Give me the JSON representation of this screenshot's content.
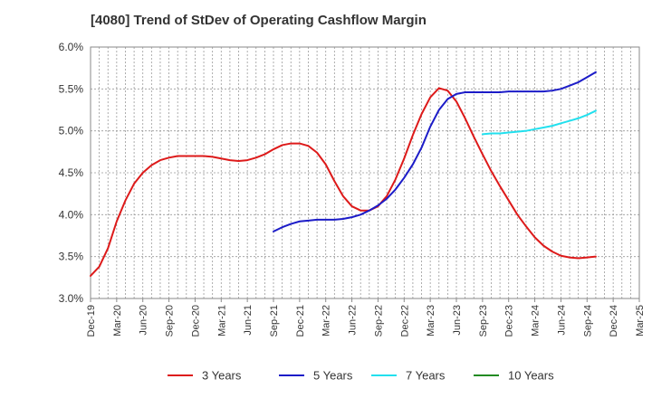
{
  "chart_data": {
    "type": "line",
    "title": "[4080]  Trend of StDev of Operating Cashflow Margin",
    "xlabel": "",
    "ylabel": "",
    "ylim": [
      3.0,
      6.0
    ],
    "y_ticks": [
      "3.0%",
      "3.5%",
      "4.0%",
      "4.5%",
      "5.0%",
      "5.5%",
      "6.0%"
    ],
    "x_ticks": [
      "Dec-19",
      "Mar-20",
      "Jun-20",
      "Sep-20",
      "Dec-20",
      "Mar-21",
      "Jun-21",
      "Sep-21",
      "Dec-21",
      "Mar-22",
      "Jun-22",
      "Sep-22",
      "Dec-22",
      "Mar-23",
      "Jun-23",
      "Sep-23",
      "Dec-23",
      "Mar-24",
      "Jun-24",
      "Sep-24",
      "Dec-24",
      "Mar-25"
    ],
    "x_range_months": [
      0,
      63
    ],
    "grid": true,
    "legend_position": "bottom",
    "series": [
      {
        "name": "3 Years",
        "color": "#dd1a1a",
        "points": [
          [
            0,
            3.27
          ],
          [
            1,
            3.38
          ],
          [
            2,
            3.6
          ],
          [
            3,
            3.92
          ],
          [
            4,
            4.17
          ],
          [
            5,
            4.37
          ],
          [
            6,
            4.5
          ],
          [
            7,
            4.59
          ],
          [
            8,
            4.65
          ],
          [
            9,
            4.68
          ],
          [
            10,
            4.7
          ],
          [
            11,
            4.7
          ],
          [
            12,
            4.7
          ],
          [
            13,
            4.7
          ],
          [
            14,
            4.69
          ],
          [
            15,
            4.67
          ],
          [
            16,
            4.65
          ],
          [
            17,
            4.64
          ],
          [
            18,
            4.65
          ],
          [
            19,
            4.68
          ],
          [
            20,
            4.72
          ],
          [
            21,
            4.78
          ],
          [
            22,
            4.83
          ],
          [
            23,
            4.85
          ],
          [
            24,
            4.85
          ],
          [
            25,
            4.82
          ],
          [
            26,
            4.74
          ],
          [
            27,
            4.6
          ],
          [
            28,
            4.4
          ],
          [
            29,
            4.22
          ],
          [
            30,
            4.1
          ],
          [
            31,
            4.05
          ],
          [
            32,
            4.05
          ],
          [
            33,
            4.1
          ],
          [
            34,
            4.22
          ],
          [
            35,
            4.42
          ],
          [
            36,
            4.67
          ],
          [
            37,
            4.95
          ],
          [
            38,
            5.2
          ],
          [
            39,
            5.4
          ],
          [
            40,
            5.51
          ],
          [
            41,
            5.48
          ],
          [
            42,
            5.35
          ],
          [
            43,
            5.15
          ],
          [
            44,
            4.93
          ],
          [
            45,
            4.72
          ],
          [
            46,
            4.52
          ],
          [
            47,
            4.34
          ],
          [
            48,
            4.17
          ],
          [
            49,
            4.0
          ],
          [
            50,
            3.86
          ],
          [
            51,
            3.73
          ],
          [
            52,
            3.63
          ],
          [
            53,
            3.56
          ],
          [
            54,
            3.51
          ],
          [
            55,
            3.49
          ],
          [
            56,
            3.48
          ],
          [
            57,
            3.49
          ],
          [
            58,
            3.5
          ]
        ]
      },
      {
        "name": "5 Years",
        "color": "#1c1cc8",
        "points": [
          [
            21,
            3.8
          ],
          [
            22,
            3.85
          ],
          [
            23,
            3.89
          ],
          [
            24,
            3.92
          ],
          [
            25,
            3.93
          ],
          [
            26,
            3.94
          ],
          [
            27,
            3.94
          ],
          [
            28,
            3.94
          ],
          [
            29,
            3.95
          ],
          [
            30,
            3.97
          ],
          [
            31,
            4.0
          ],
          [
            32,
            4.05
          ],
          [
            33,
            4.11
          ],
          [
            34,
            4.19
          ],
          [
            35,
            4.3
          ],
          [
            36,
            4.44
          ],
          [
            37,
            4.6
          ],
          [
            38,
            4.8
          ],
          [
            39,
            5.05
          ],
          [
            40,
            5.25
          ],
          [
            41,
            5.38
          ],
          [
            42,
            5.44
          ],
          [
            43,
            5.46
          ],
          [
            44,
            5.46
          ],
          [
            45,
            5.46
          ],
          [
            46,
            5.46
          ],
          [
            47,
            5.46
          ],
          [
            48,
            5.47
          ],
          [
            49,
            5.47
          ],
          [
            50,
            5.47
          ],
          [
            51,
            5.47
          ],
          [
            52,
            5.47
          ],
          [
            53,
            5.48
          ],
          [
            54,
            5.5
          ],
          [
            55,
            5.54
          ],
          [
            56,
            5.58
          ],
          [
            57,
            5.64
          ],
          [
            58,
            5.7
          ]
        ]
      },
      {
        "name": "7 Years",
        "color": "#22e0ee",
        "points": [
          [
            45,
            4.96
          ],
          [
            46,
            4.97
          ],
          [
            47,
            4.97
          ],
          [
            48,
            4.98
          ],
          [
            49,
            4.99
          ],
          [
            50,
            5.0
          ],
          [
            51,
            5.02
          ],
          [
            52,
            5.04
          ],
          [
            53,
            5.06
          ],
          [
            54,
            5.09
          ],
          [
            55,
            5.12
          ],
          [
            56,
            5.15
          ],
          [
            57,
            5.19
          ],
          [
            58,
            5.24
          ]
        ]
      },
      {
        "name": "10 Years",
        "color": "#228b22",
        "points": []
      }
    ]
  }
}
